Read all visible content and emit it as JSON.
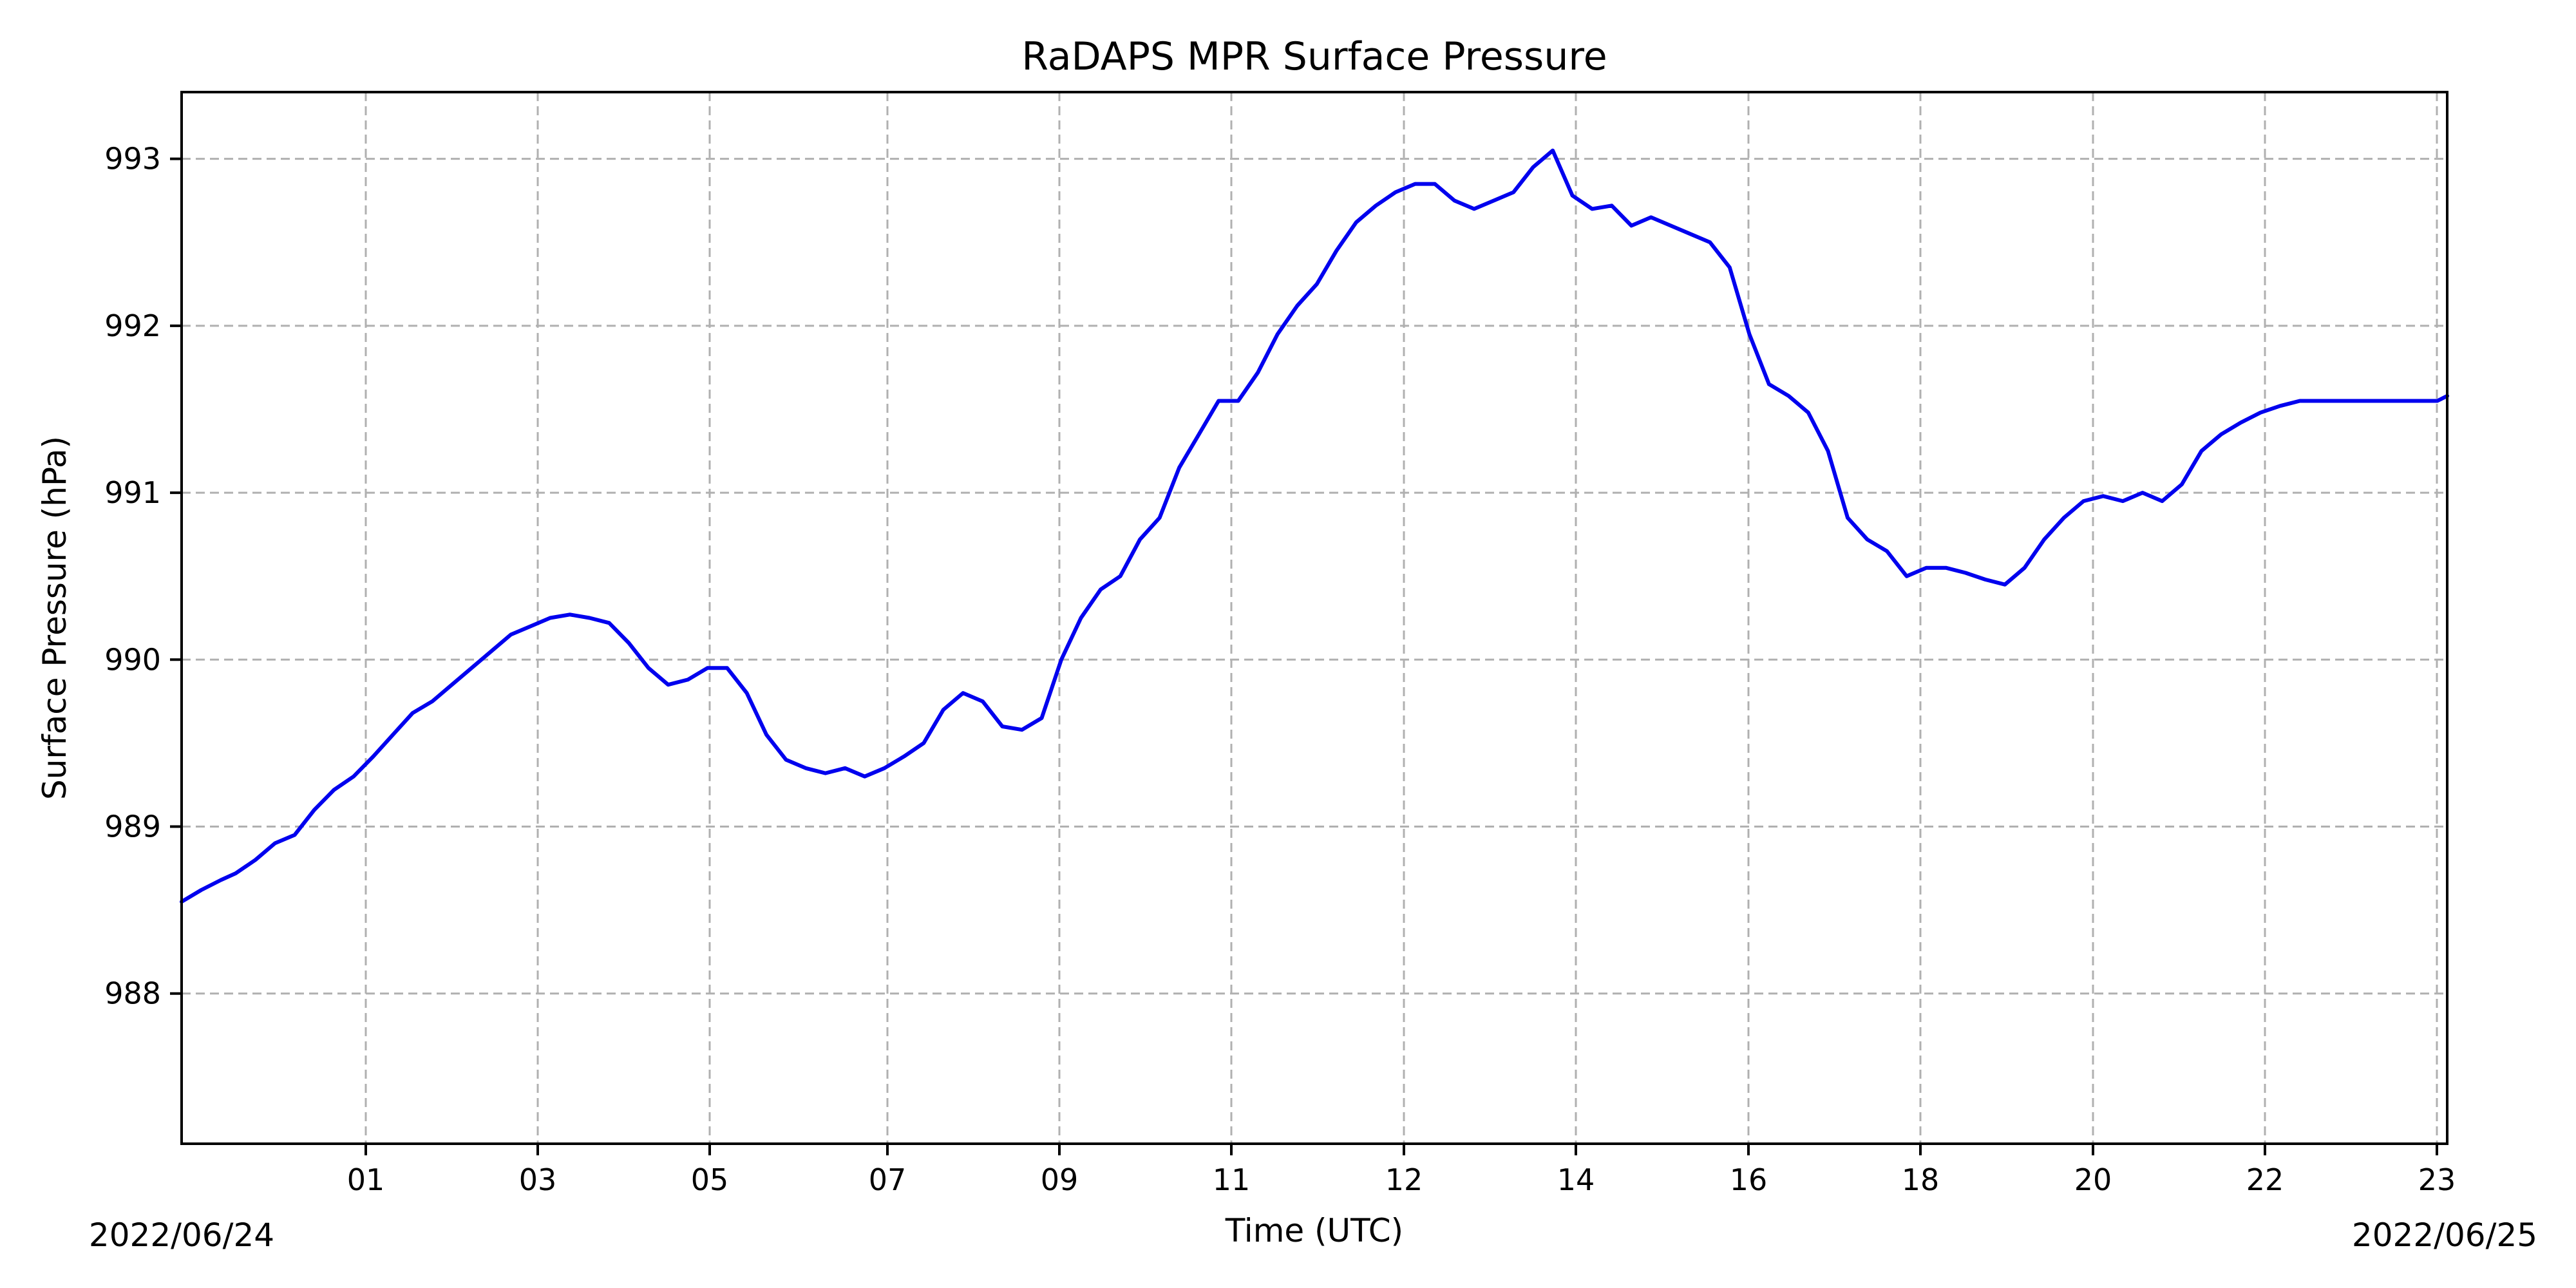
{
  "chart_data": {
    "type": "line",
    "title": "RaDAPS MPR Surface Pressure",
    "xlabel": "Time (UTC)",
    "ylabel": "Surface Pressure (hPa)",
    "x_unit": "hours since 2022/06/24 00:00 UTC",
    "xlim": [
      0,
      23.05
    ],
    "ylim": [
      987.1,
      993.4
    ],
    "grid": true,
    "x_tick_labels": [
      "01",
      "03",
      "05",
      "07",
      "09",
      "11",
      "12",
      "14",
      "16",
      "18",
      "20",
      "22",
      "23"
    ],
    "y_ticks": [
      988,
      989,
      990,
      991,
      992,
      993
    ],
    "y_tick_labels": [
      "988",
      "989",
      "990",
      "991",
      "992",
      "993"
    ],
    "date_labels": [
      "2022/06/24",
      "2022/06/25"
    ],
    "series": [
      {
        "name": "",
        "color": "#0000ee",
        "x": [
          0.0,
          0.2,
          0.4,
          0.55,
          0.75,
          0.95,
          1.15,
          1.35,
          1.55,
          1.75,
          1.95,
          2.15,
          2.35,
          2.55,
          2.75,
          2.95,
          3.15,
          3.35,
          3.55,
          3.75,
          3.95,
          4.15,
          4.35,
          4.55,
          4.75,
          4.95,
          5.15,
          5.35,
          5.55,
          5.75,
          5.95,
          6.15,
          6.35,
          6.55,
          6.75,
          6.95,
          7.15,
          7.35,
          7.55,
          7.75,
          7.95,
          8.15,
          8.35,
          8.55,
          8.75,
          8.95,
          9.15,
          9.35,
          9.55,
          9.75,
          9.95,
          10.15,
          10.35,
          10.55,
          10.75,
          10.95,
          11.15,
          11.35,
          11.55,
          11.75,
          11.95,
          12.15,
          12.35,
          12.55,
          12.75,
          12.95,
          13.15,
          13.35,
          13.55,
          13.75,
          13.95,
          14.15,
          14.35,
          14.55,
          14.75,
          14.95,
          15.15,
          15.35,
          15.55,
          15.75,
          15.95,
          16.15,
          16.35,
          16.55,
          16.75,
          16.95,
          17.15,
          17.35,
          17.55,
          17.75,
          17.95,
          18.15,
          18.35,
          18.55,
          18.75,
          18.95,
          19.15,
          19.35,
          19.55,
          19.75,
          19.95,
          20.15,
          20.35,
          20.55,
          20.75,
          20.95,
          21.15,
          21.35,
          21.55,
          21.75,
          21.95,
          22.15,
          22.35,
          22.55,
          22.75,
          22.95,
          23.05
        ],
        "y": [
          988.55,
          988.62,
          988.68,
          988.72,
          988.8,
          988.9,
          988.95,
          989.1,
          989.22,
          989.3,
          989.42,
          989.55,
          989.68,
          989.75,
          989.85,
          989.95,
          990.05,
          990.15,
          990.2,
          990.25,
          990.27,
          990.25,
          990.22,
          990.1,
          989.95,
          989.85,
          989.88,
          989.95,
          989.95,
          989.8,
          989.55,
          989.4,
          989.35,
          989.32,
          989.35,
          989.3,
          989.35,
          989.42,
          989.5,
          989.7,
          989.8,
          989.75,
          989.6,
          989.58,
          989.65,
          990.0,
          990.25,
          990.42,
          990.5,
          990.72,
          990.85,
          991.15,
          991.35,
          991.55,
          991.55,
          991.72,
          991.95,
          992.12,
          992.25,
          992.45,
          992.62,
          992.72,
          992.8,
          992.85,
          992.85,
          992.75,
          992.7,
          992.75,
          992.8,
          992.95,
          993.05,
          992.78,
          992.7,
          992.72,
          992.6,
          992.65,
          992.6,
          992.55,
          992.5,
          992.35,
          991.95,
          991.65,
          991.58,
          991.48,
          991.25,
          990.85,
          990.72,
          990.65,
          990.5,
          990.55,
          990.55,
          990.52,
          990.48,
          990.45,
          990.55,
          990.72,
          990.85,
          990.95,
          990.98,
          990.95,
          991.0,
          990.95,
          991.05,
          991.25,
          991.35,
          991.42,
          991.48,
          991.52,
          991.55,
          991.55,
          991.55,
          991.55,
          991.55,
          991.55,
          991.55,
          991.55,
          991.58
        ]
      }
    ]
  }
}
